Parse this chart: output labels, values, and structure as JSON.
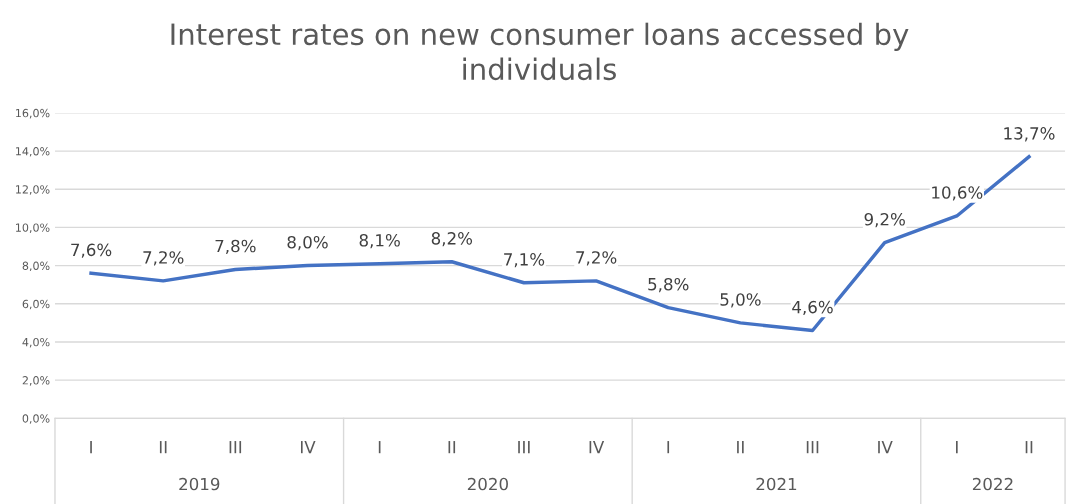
{
  "chart_data": {
    "type": "line",
    "title": "Interest rates on new consumer loans accessed by individuals",
    "categories": [
      "I",
      "II",
      "III",
      "IV",
      "I",
      "II",
      "III",
      "IV",
      "I",
      "II",
      "III",
      "IV",
      "I",
      "II"
    ],
    "annotations": [
      "2019",
      "2020",
      "2021",
      "2022"
    ],
    "series": [
      {
        "color": "#4472c4",
        "values": [
          7.6,
          7.2,
          7.8,
          8.0,
          8.1,
          8.2,
          7.1,
          7.2,
          5.8,
          5.0,
          4.6,
          9.2,
          10.6,
          13.7
        ],
        "value_labels": [
          "7,6%",
          "7,2%",
          "7,8%",
          "8,0%",
          "8,1%",
          "8,2%",
          "7,1%",
          "7,2%",
          "5,8%",
          "5,0%",
          "4,6%",
          "9,2%",
          "10,6%",
          "13,7%"
        ]
      }
    ],
    "ylim": [
      0,
      16
    ],
    "yticks": [
      {
        "value": 0,
        "label": "0,0%"
      },
      {
        "value": 2,
        "label": "2,0%"
      },
      {
        "value": 4,
        "label": "4,0%"
      },
      {
        "value": 6,
        "label": "6,0%"
      },
      {
        "value": 8,
        "label": "8,0%"
      },
      {
        "value": 10,
        "label": "10,0%"
      },
      {
        "value": 12,
        "label": "12,0%"
      },
      {
        "value": 14,
        "label": "14,0%"
      },
      {
        "value": 16,
        "label": "16,0%"
      }
    ],
    "grid": "y",
    "legend": false,
    "marker": "none",
    "line_style": "solid"
  }
}
